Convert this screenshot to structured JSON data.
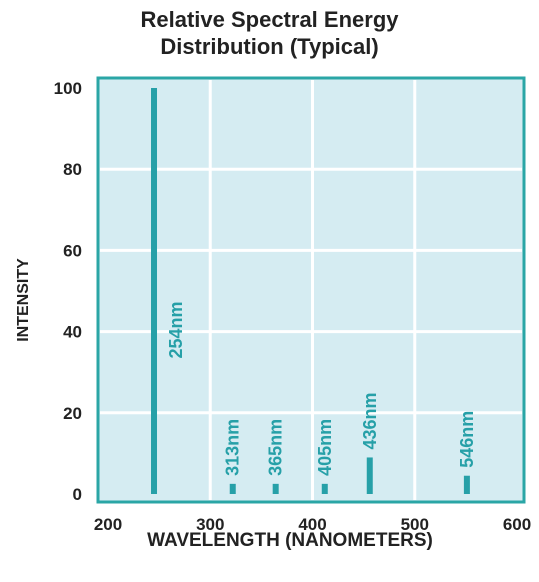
{
  "colors": {
    "plot_bg": "#d5ecf2",
    "grid": "#ffffff",
    "border": "#2aa6a6",
    "bar": "#26a0a8"
  },
  "chart_data": {
    "type": "bar",
    "title": "Relative Spectral Energy Distribution (Typical)",
    "title_lines": [
      "Relative Spectral Energy",
      "Distribution (Typical)"
    ],
    "xlabel": "WAVELENGTH (NANOMETERS)",
    "ylabel": "INTENSITY",
    "xlim": [
      200,
      600
    ],
    "ylim": [
      0,
      100
    ],
    "xticks": [
      200,
      300,
      400,
      500,
      600
    ],
    "yticks": [
      0,
      20,
      40,
      60,
      80,
      100
    ],
    "grid": true,
    "points": [
      {
        "label": "254nm",
        "x": 245,
        "y": 100
      },
      {
        "label": "313nm",
        "x": 322,
        "y": 2.5
      },
      {
        "label": "365nm",
        "x": 364,
        "y": 2.5
      },
      {
        "label": "405nm",
        "x": 412,
        "y": 2.5
      },
      {
        "label": "436nm",
        "x": 456,
        "y": 9
      },
      {
        "label": "546nm",
        "x": 551,
        "y": 4.5
      }
    ]
  }
}
